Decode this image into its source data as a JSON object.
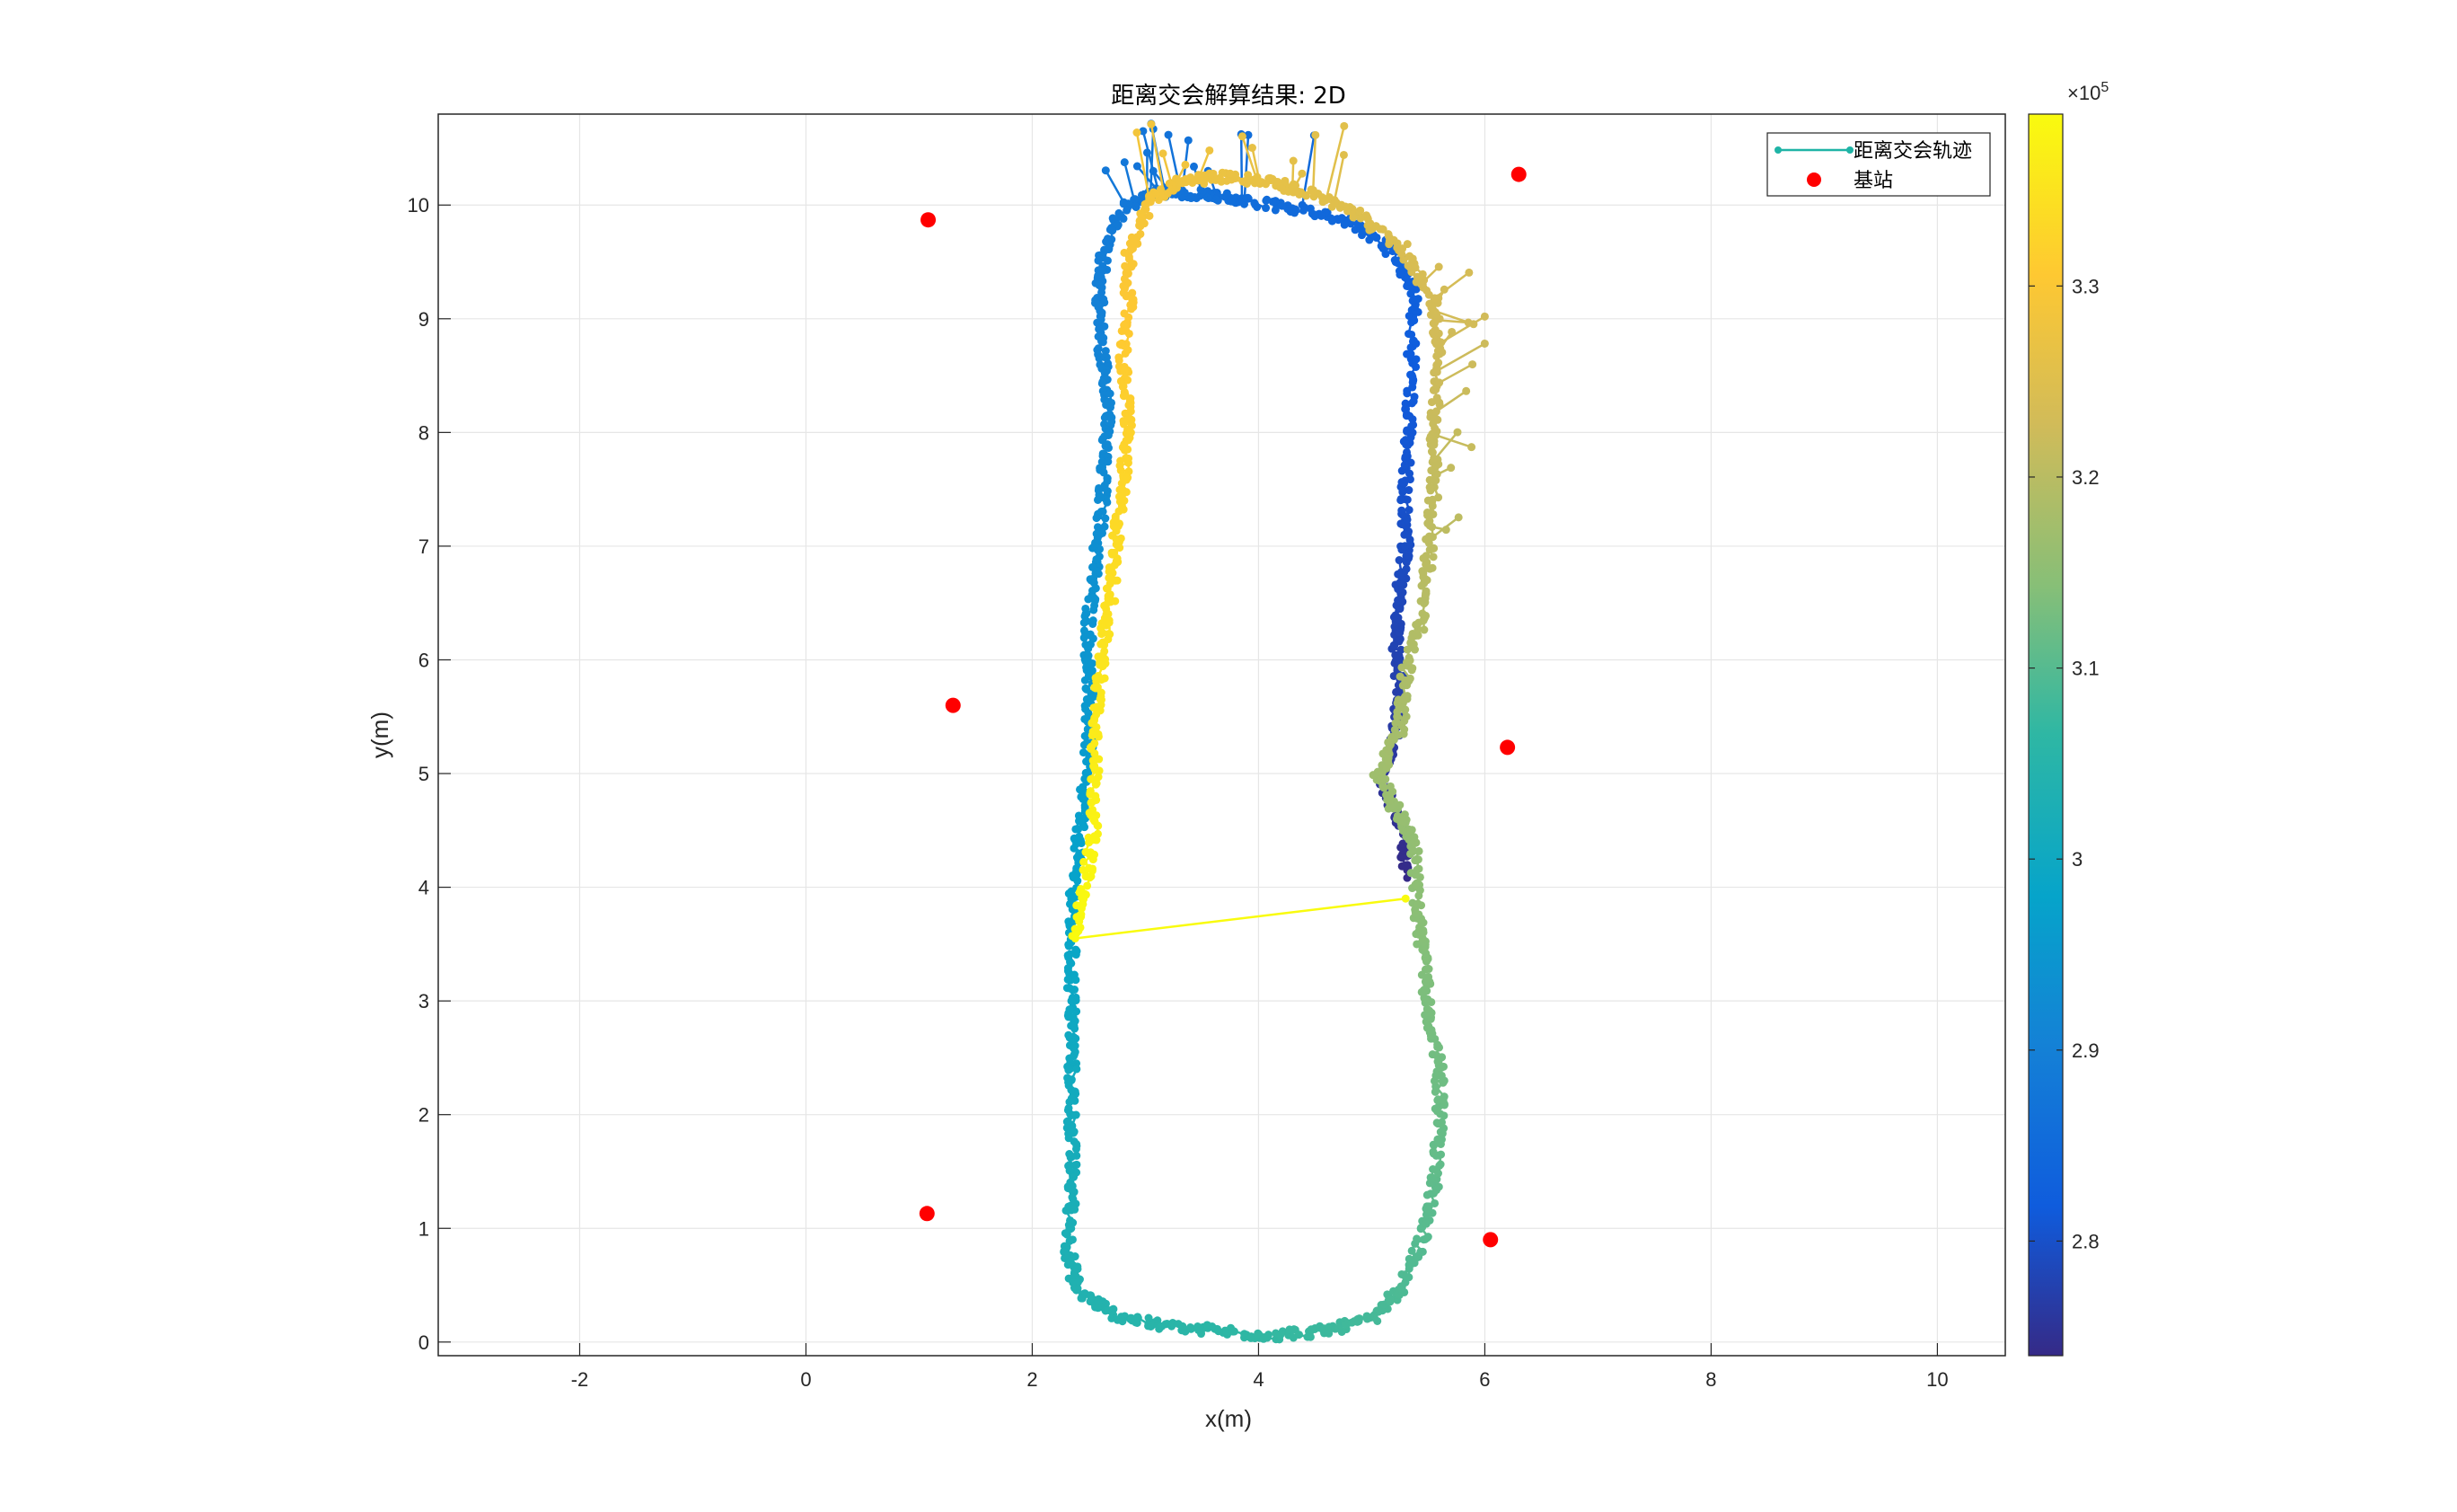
{
  "chart_data": {
    "type": "scatter",
    "title": "距离交会解算结果: 2D",
    "xlabel": "x(m)",
    "ylabel": "y(m)",
    "xlim": [
      -3.25,
      10.6
    ],
    "ylim": [
      -0.12,
      10.8
    ],
    "xticks": [
      -2,
      0,
      2,
      4,
      6,
      8,
      10
    ],
    "yticks": [
      0,
      1,
      2,
      3,
      4,
      5,
      6,
      7,
      8,
      9,
      10
    ],
    "grid": true,
    "legend": {
      "placement": "top-right",
      "entries": [
        "距离交会轨迹",
        "基站"
      ]
    },
    "colorbar": {
      "colormap": "parula",
      "range": [
        274000,
        339000
      ],
      "ticks": [
        2.8,
        2.9,
        3.0,
        3.1,
        3.2,
        3.3
      ],
      "tick_labels": [
        "2.8",
        "2.9",
        "3",
        "3.1",
        "3.2",
        "3.3"
      ],
      "exponent_label": "×10",
      "exponent_power": "5"
    },
    "series": [
      {
        "name": "距离交会轨迹",
        "color_by": "time",
        "c_start": 274500,
        "c_end": 338500,
        "path": [
          [
            5.3,
            4.1
          ],
          [
            5.28,
            4.5
          ],
          [
            5.1,
            4.9
          ],
          [
            5.2,
            5.3
          ],
          [
            5.25,
            5.7
          ],
          [
            5.22,
            6.1
          ],
          [
            5.25,
            6.6
          ],
          [
            5.3,
            7.0
          ],
          [
            5.3,
            7.5
          ],
          [
            5.32,
            8.0
          ],
          [
            5.35,
            8.6
          ],
          [
            5.38,
            9.2
          ],
          [
            5.22,
            9.55
          ],
          [
            4.8,
            9.85
          ],
          [
            4.3,
            9.98
          ],
          [
            3.8,
            10.05
          ],
          [
            3.5,
            10.1
          ],
          [
            3.1,
            10.12
          ],
          [
            2.85,
            10.0
          ],
          [
            2.65,
            9.7
          ],
          [
            2.6,
            9.3
          ],
          [
            2.6,
            8.8
          ],
          [
            2.68,
            8.3
          ],
          [
            2.63,
            7.8
          ],
          [
            2.62,
            7.3
          ],
          [
            2.55,
            6.8
          ],
          [
            2.5,
            6.3
          ],
          [
            2.5,
            5.8
          ],
          [
            2.5,
            5.3
          ],
          [
            2.45,
            4.8
          ],
          [
            2.4,
            4.3
          ],
          [
            2.35,
            3.8
          ],
          [
            2.35,
            3.3
          ],
          [
            2.35,
            2.8
          ],
          [
            2.35,
            2.3
          ],
          [
            2.35,
            1.8
          ],
          [
            2.35,
            1.3
          ],
          [
            2.32,
            0.8
          ],
          [
            2.4,
            0.45
          ],
          [
            2.7,
            0.25
          ],
          [
            3.1,
            0.15
          ],
          [
            3.6,
            0.1
          ],
          [
            4.1,
            0.06
          ],
          [
            4.6,
            0.1
          ],
          [
            5.0,
            0.2
          ],
          [
            5.25,
            0.45
          ],
          [
            5.45,
            0.9
          ],
          [
            5.55,
            1.4
          ],
          [
            5.6,
            1.9
          ],
          [
            5.6,
            2.4
          ],
          [
            5.5,
            2.9
          ],
          [
            5.45,
            3.4
          ],
          [
            5.4,
            3.8
          ],
          [
            5.38,
            4.35
          ],
          [
            5.2,
            4.7
          ],
          [
            5.05,
            5.0
          ],
          [
            5.25,
            5.4
          ],
          [
            5.3,
            5.9
          ],
          [
            5.45,
            6.4
          ],
          [
            5.5,
            6.9
          ],
          [
            5.55,
            7.5
          ],
          [
            5.55,
            8.1
          ],
          [
            5.58,
            8.7
          ],
          [
            5.55,
            9.15
          ],
          [
            5.3,
            9.6
          ],
          [
            4.9,
            9.9
          ],
          [
            4.5,
            10.1
          ],
          [
            4.1,
            10.2
          ],
          [
            3.7,
            10.25
          ],
          [
            3.3,
            10.2
          ],
          [
            3.05,
            10.05
          ],
          [
            2.85,
            9.6
          ],
          [
            2.85,
            9.1
          ],
          [
            2.8,
            8.6
          ],
          [
            2.85,
            8.1
          ],
          [
            2.8,
            7.6
          ],
          [
            2.75,
            7.1
          ],
          [
            2.7,
            6.6
          ],
          [
            2.62,
            6.1
          ],
          [
            2.58,
            5.6
          ],
          [
            2.55,
            5.1
          ],
          [
            2.55,
            4.6
          ],
          [
            2.48,
            4.1
          ],
          [
            2.38,
            3.55
          ],
          [
            5.3,
            3.9
          ]
        ]
      },
      {
        "name": "基站",
        "color": "#ff0000",
        "points": [
          [
            1.08,
            9.87
          ],
          [
            6.3,
            10.27
          ],
          [
            1.3,
            5.6
          ],
          [
            6.2,
            5.23
          ],
          [
            1.07,
            1.13
          ],
          [
            6.05,
            0.9
          ]
        ]
      }
    ]
  }
}
